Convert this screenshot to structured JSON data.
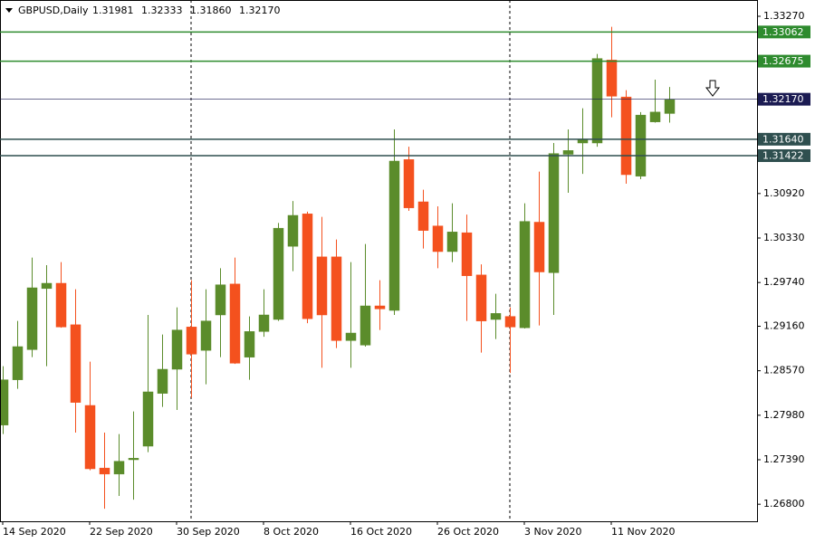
{
  "chart_data": {
    "type": "candlestick",
    "title": "GBPUSD,Daily",
    "header_prices": [
      "1.31981",
      "1.32333",
      "1.31860",
      "1.32170"
    ],
    "x": [
      "14 Sep 2020",
      null,
      null,
      null,
      null,
      null,
      "22 Sep 2020",
      null,
      null,
      null,
      null,
      null,
      "30 Sep 2020",
      null,
      null,
      null,
      null,
      null,
      "8 Oct 2020",
      null,
      null,
      null,
      null,
      null,
      "16 Oct 2020",
      null,
      null,
      null,
      null,
      null,
      "26 Oct 2020",
      null,
      null,
      null,
      null,
      null,
      "3 Nov 2020",
      null,
      null,
      null,
      null,
      null,
      "11 Nov 2020",
      null,
      null,
      null,
      null
    ],
    "open": [
      1.2785,
      1.2845,
      1.2885,
      1.2966,
      1.2973,
      1.2918,
      1.2811,
      1.2728,
      1.272,
      1.2739,
      1.2757,
      1.2827,
      1.2859,
      1.2915,
      1.2884,
      1.2931,
      1.2972,
      1.2875,
      1.2909,
      1.2925,
      1.3022,
      1.3065,
      1.3008,
      1.3008,
      1.2897,
      1.2891,
      1.2943,
      1.2937,
      1.3137,
      1.3081,
      1.3049,
      1.3015,
      1.304,
      1.2984,
      1.2925,
      1.2929,
      1.2914,
      1.3054,
      1.2987,
      1.3144,
      1.3159,
      1.3159,
      1.3269,
      1.322,
      1.3115,
      1.3187,
      1.31981
    ],
    "high": [
      1.2863,
      1.2923,
      1.3007,
      1.2997,
      1.3001,
      1.2965,
      1.2869,
      1.2775,
      1.2773,
      1.2803,
      1.2931,
      1.2905,
      1.2941,
      1.2977,
      1.2965,
      1.2993,
      1.3007,
      1.2929,
      1.2965,
      1.3053,
      1.3082,
      1.3068,
      1.3061,
      1.3031,
      1.3001,
      1.3025,
      1.2977,
      1.3177,
      1.3154,
      1.3097,
      1.3075,
      1.3079,
      1.3064,
      1.2998,
      1.2959,
      1.2941,
      1.3079,
      1.3121,
      1.3159,
      1.3177,
      1.3205,
      1.3277,
      1.3313,
      1.3229,
      1.32,
      1.3243,
      1.32333
    ],
    "low": [
      1.2773,
      1.2833,
      1.2875,
      1.2863,
      1.2914,
      1.2775,
      1.2725,
      1.2674,
      1.2691,
      1.2686,
      1.2749,
      1.2809,
      1.2805,
      1.2821,
      1.2839,
      1.2875,
      1.2866,
      1.2845,
      1.2902,
      1.2923,
      1.2989,
      1.292,
      1.2861,
      1.2887,
      1.2861,
      1.2889,
      1.2911,
      1.2931,
      1.3069,
      1.3019,
      1.2993,
      1.3001,
      1.2923,
      1.2881,
      1.2899,
      1.2854,
      1.2913,
      1.2917,
      1.2931,
      1.3093,
      1.3118,
      1.3154,
      1.3193,
      1.3105,
      1.3111,
      1.3186,
      1.3186
    ],
    "close": [
      1.2845,
      1.2889,
      1.2967,
      1.2973,
      1.2915,
      1.2815,
      1.2727,
      1.272,
      1.2737,
      1.2741,
      1.2829,
      1.2859,
      1.2911,
      1.2879,
      1.2923,
      1.2971,
      1.2867,
      1.2909,
      1.2931,
      1.3046,
      1.3063,
      1.2926,
      1.2931,
      1.2897,
      1.2907,
      1.2943,
      1.2939,
      1.3135,
      1.3073,
      1.3043,
      1.3015,
      1.3041,
      1.2983,
      1.2923,
      1.2933,
      1.2915,
      1.3055,
      1.2988,
      1.3145,
      1.3149,
      1.3163,
      1.3271,
      1.3221,
      1.3117,
      1.3196,
      1.32,
      1.3217
    ],
    "up_color": "#5b8c2b",
    "down_color": "#f4511e",
    "ylim": [
      1.26574,
      1.33486
    ],
    "yticks": [
      {
        "value": 1.3327,
        "label": "1.33270"
      },
      {
        "value": 1.3092,
        "label": "1.30920"
      },
      {
        "value": 1.3033,
        "label": "1.30330"
      },
      {
        "value": 1.2974,
        "label": "1.29740"
      },
      {
        "value": 1.2916,
        "label": "1.29160"
      },
      {
        "value": 1.2857,
        "label": "1.28570"
      },
      {
        "value": 1.2798,
        "label": "1.27980"
      },
      {
        "value": 1.2739,
        "label": "1.27390"
      },
      {
        "value": 1.268,
        "label": "1.26800"
      }
    ],
    "levels": [
      {
        "value": 1.33062,
        "label": "1.33062",
        "color": "#2e8b2e"
      },
      {
        "value": 1.32675,
        "label": "1.32675",
        "color": "#2e8b2e"
      },
      {
        "value": 1.3217,
        "label": "1.32170",
        "color": "#1b1b52"
      },
      {
        "value": 1.3164,
        "label": "1.31640",
        "color": "#2f4f4f"
      },
      {
        "value": 1.31422,
        "label": "1.31422",
        "color": "#2f4f4f"
      }
    ]
  }
}
